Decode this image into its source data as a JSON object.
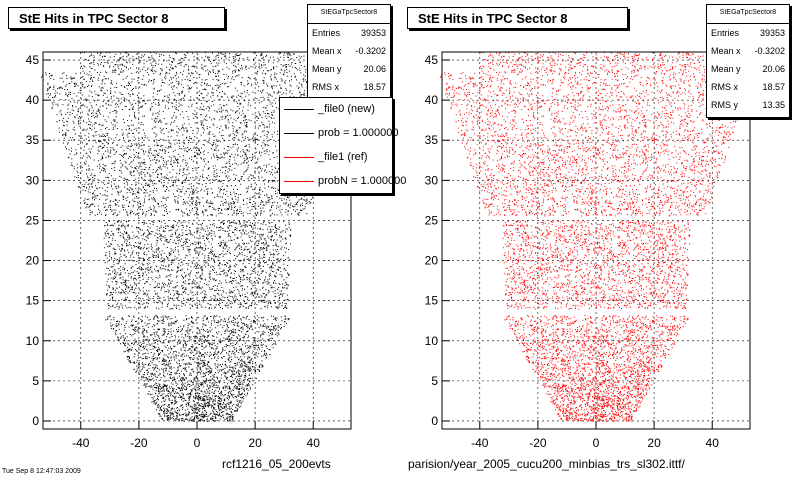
{
  "chart_data": [
    {
      "type": "scatter",
      "title": "StE Hits in TPC Sector 8",
      "xlim": [
        -53,
        53
      ],
      "ylim": [
        -1,
        46
      ],
      "x_ticks": [
        -40,
        -20,
        0,
        20,
        40
      ],
      "y_ticks": [
        0,
        5,
        10,
        15,
        20,
        25,
        30,
        35,
        40,
        45
      ],
      "grid": true,
      "marker_color": "#000000",
      "stats": {
        "header": "StEGaTpcSector8",
        "rows": [
          {
            "label": "Entries",
            "value": "39353"
          },
          {
            "label": "Mean x",
            "value": "-0.3202"
          },
          {
            "label": "Mean y",
            "value": "20.06"
          },
          {
            "label": "RMS x",
            "value": "18.57"
          }
        ]
      },
      "legend": [
        {
          "label": "_file0 (new)",
          "color": "#000000"
        },
        {
          "label": "prob = 1.000000",
          "color": "#000000"
        },
        {
          "label": "_file1 (ref)",
          "color": "#ff0000"
        },
        {
          "label": "probN = 1.000000",
          "color": "#ff0000"
        }
      ],
      "footer": "rcf1216_05_200evts",
      "footer_small": "Tue Sep  8 12:47:03 2009"
    },
    {
      "type": "scatter",
      "title": "StE Hits in TPC Sector 8",
      "xlim": [
        -53,
        53
      ],
      "ylim": [
        -1,
        46
      ],
      "x_ticks": [
        -40,
        -20,
        0,
        20,
        40
      ],
      "y_ticks": [
        0,
        5,
        10,
        15,
        20,
        25,
        30,
        35,
        40,
        45
      ],
      "grid": true,
      "marker_color": "#ff0000",
      "stats": {
        "header": "StEGaTpcSector8",
        "rows": [
          {
            "label": "Entries",
            "value": "39353"
          },
          {
            "label": "Mean x",
            "value": "-0.3202"
          },
          {
            "label": "Mean y",
            "value": "20.06"
          },
          {
            "label": "RMS x",
            "value": "18.57"
          },
          {
            "label": "RMS y",
            "value": "13.35"
          }
        ]
      },
      "footer": "parision/year_2005_cucu200_minbias_trs_sl302.ittf/"
    }
  ]
}
